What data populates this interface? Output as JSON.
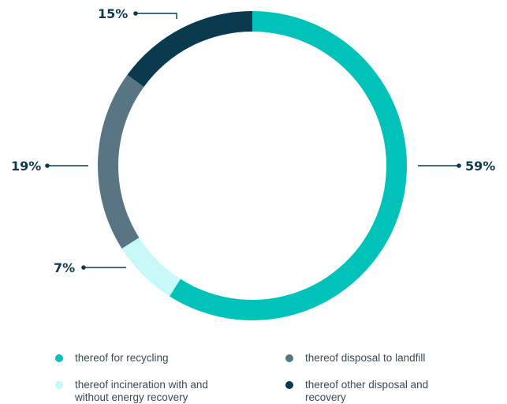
{
  "chart_data": {
    "type": "pie",
    "donut": true,
    "categories": [
      "thereof for recycling",
      "thereof incineration with and without energy recovery",
      "thereof disposal to landfill",
      "thereof other disposal and recovery"
    ],
    "values": [
      59,
      7,
      19,
      15
    ],
    "value_labels": [
      "59%",
      "7%",
      "19%",
      "15%"
    ],
    "colors": [
      "#00c2b8",
      "#c8f8f8",
      "#597584",
      "#0a3a4e"
    ],
    "legend_position": "bottom"
  },
  "legend": {
    "items": [
      {
        "label": "thereof for recycling",
        "color": "#00c2b8"
      },
      {
        "label": "thereof disposal to landfill",
        "color": "#597584"
      },
      {
        "label": "thereof incineration with and without energy recovery",
        "color": "#c8f8f8"
      },
      {
        "label": "thereof other disposal and recovery",
        "color": "#0a3a4e"
      }
    ]
  }
}
